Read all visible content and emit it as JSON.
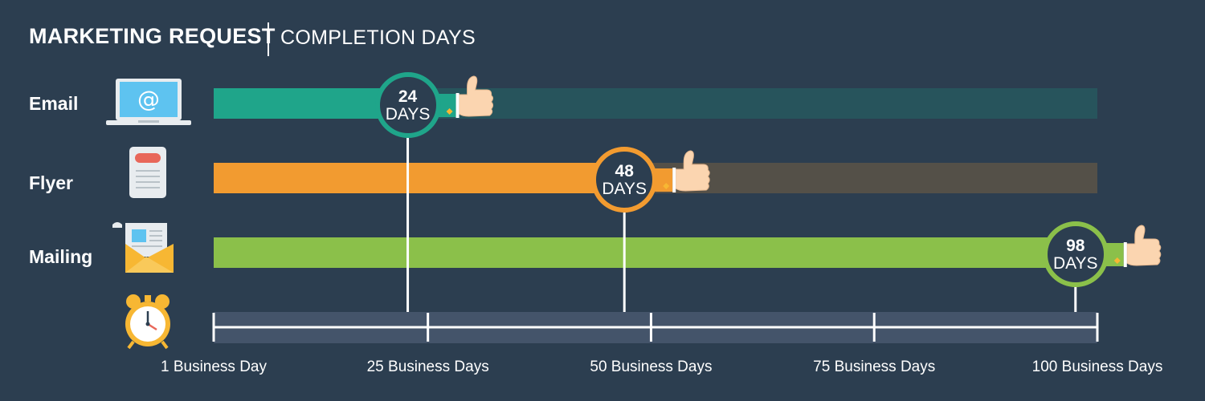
{
  "header": {
    "title": "MARKETING REQUEST",
    "subtitle": "COMPLETION DAYS"
  },
  "chart_data": {
    "type": "bar",
    "orientation": "horizontal",
    "title": "MARKETING REQUEST | COMPLETION DAYS",
    "categories": [
      "Email",
      "Flyer",
      "Mailing"
    ],
    "values": [
      24,
      48,
      98
    ],
    "value_unit": "DAYS",
    "xlim": [
      1,
      100
    ],
    "x_ticks": [
      1,
      25,
      50,
      75,
      100
    ],
    "x_tick_labels": [
      "1  Business Day",
      "25 Business Days",
      "50 Business Days",
      "75 Business Days",
      "100 Business Days"
    ],
    "colors": [
      "#1fa58a",
      "#f29b30",
      "#8bc04a"
    ],
    "track_colors": [
      "#27545c",
      "#545048",
      "#8bc04a"
    ],
    "icons": [
      "laptop-email-icon",
      "document-icon",
      "envelope-icon"
    ],
    "axis_icon": "alarm-clock-icon"
  }
}
